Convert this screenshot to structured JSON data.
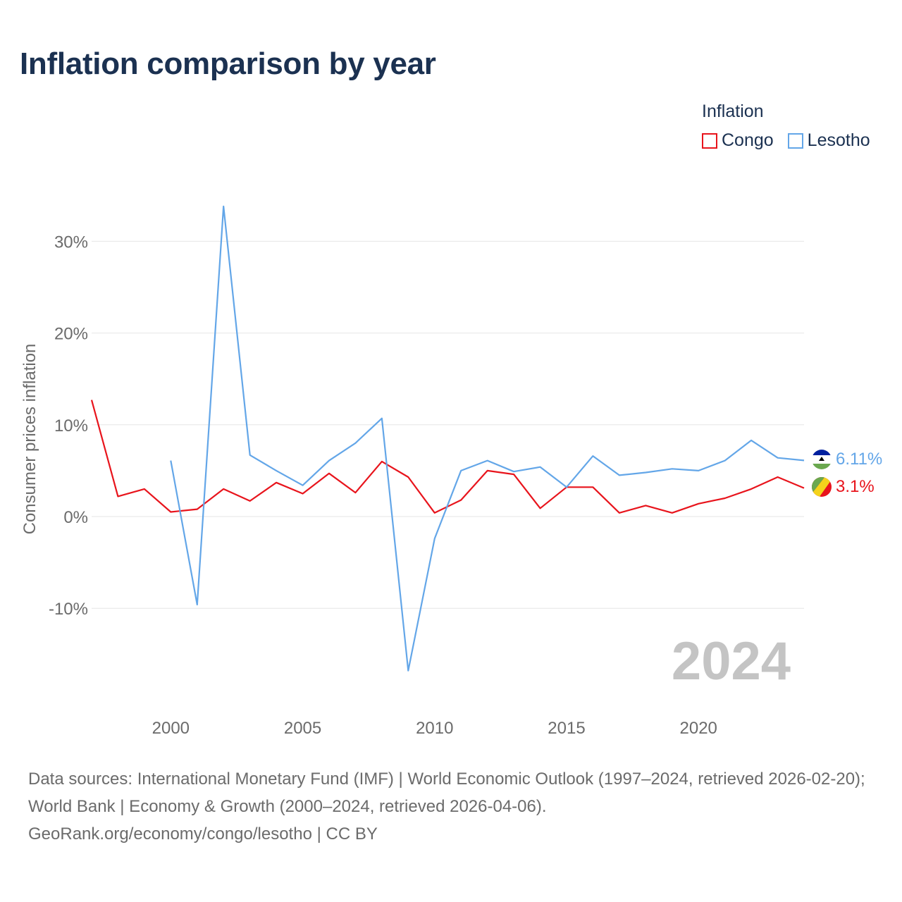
{
  "title": "Inflation comparison by year",
  "legend": {
    "title": "Inflation",
    "items": [
      {
        "label": "Congo",
        "color": "#e8141c"
      },
      {
        "label": "Lesotho",
        "color": "#63a6e8"
      }
    ]
  },
  "footer": {
    "sources": "Data sources: International Monetary Fund (IMF) | World Economic Outlook (1997–2024, retrieved 2026-02-20); World Bank | Economy & Growth (2000–2024, retrieved 2026-04-06).",
    "credit": "GeoRank.org/economy/congo/lesotho | CC BY"
  },
  "chart_data": {
    "type": "line",
    "title": "Inflation comparison by year",
    "ylabel": "Consumer prices inflation",
    "xlabel": "",
    "ylim": [
      -20,
      35
    ],
    "xlim": [
      1997,
      2024
    ],
    "yticks": [
      -10,
      0,
      10,
      20,
      30
    ],
    "ytick_labels": [
      "-10%",
      "0%",
      "10%",
      "20%",
      "30%"
    ],
    "xticks": [
      2000,
      2005,
      2010,
      2015,
      2020
    ],
    "xtick_labels": [
      "2000",
      "2005",
      "2010",
      "2015",
      "2020"
    ],
    "watermark": "2024",
    "series": [
      {
        "name": "Congo",
        "color": "#e8141c",
        "end_label": "3.1%",
        "x": [
          1997,
          1998,
          1999,
          2000,
          2001,
          2002,
          2003,
          2004,
          2005,
          2006,
          2007,
          2008,
          2009,
          2010,
          2011,
          2012,
          2013,
          2014,
          2015,
          2016,
          2017,
          2018,
          2019,
          2020,
          2021,
          2022,
          2023,
          2024
        ],
        "values": [
          12.7,
          2.2,
          3.0,
          0.5,
          0.8,
          3.0,
          1.7,
          3.7,
          2.5,
          4.7,
          2.6,
          6.0,
          4.3,
          0.4,
          1.8,
          5.0,
          4.6,
          0.9,
          3.2,
          3.2,
          0.4,
          1.2,
          0.4,
          1.4,
          2.0,
          3.0,
          4.3,
          3.1
        ]
      },
      {
        "name": "Lesotho",
        "color": "#63a6e8",
        "end_label": "6.11%",
        "x": [
          2000,
          2001,
          2002,
          2003,
          2004,
          2005,
          2006,
          2007,
          2008,
          2009,
          2010,
          2011,
          2012,
          2013,
          2014,
          2015,
          2016,
          2017,
          2018,
          2019,
          2020,
          2021,
          2022,
          2023,
          2024
        ],
        "values": [
          6.1,
          -9.6,
          33.8,
          6.7,
          5.0,
          3.4,
          6.1,
          8.0,
          10.7,
          -16.8,
          -2.4,
          5.0,
          6.1,
          4.9,
          5.4,
          3.2,
          6.6,
          4.5,
          4.8,
          5.2,
          5.0,
          6.1,
          8.3,
          6.4,
          6.11
        ]
      }
    ]
  }
}
